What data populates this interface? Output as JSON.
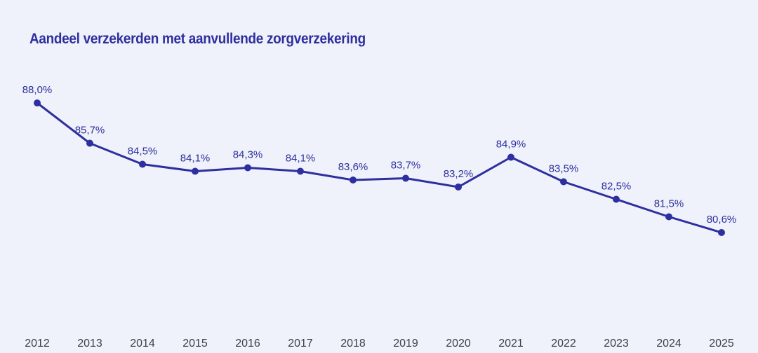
{
  "chart_data": {
    "type": "line",
    "title": "Aandeel verzekerden met aanvullende zorgverzekering",
    "xlabel": "",
    "ylabel": "",
    "categories": [
      "2012",
      "2013",
      "2014",
      "2015",
      "2016",
      "2017",
      "2018",
      "2019",
      "2020",
      "2021",
      "2022",
      "2023",
      "2024",
      "2025"
    ],
    "series": [
      {
        "name": "Aandeel verzekerden met aanvullende zorgverzekering",
        "values": [
          88.0,
          85.7,
          84.5,
          84.1,
          84.3,
          84.1,
          83.6,
          83.7,
          83.2,
          84.9,
          83.5,
          82.5,
          81.5,
          80.6
        ],
        "labels": [
          "88,0%",
          "85,7%",
          "84,5%",
          "84,1%",
          "84,3%",
          "84,1%",
          "83,6%",
          "83,7%",
          "83,2%",
          "84,9%",
          "83,5%",
          "82,5%",
          "81,5%",
          "80,6%"
        ],
        "color": "#2e2f9f"
      }
    ],
    "grid": false,
    "legend": "none"
  }
}
